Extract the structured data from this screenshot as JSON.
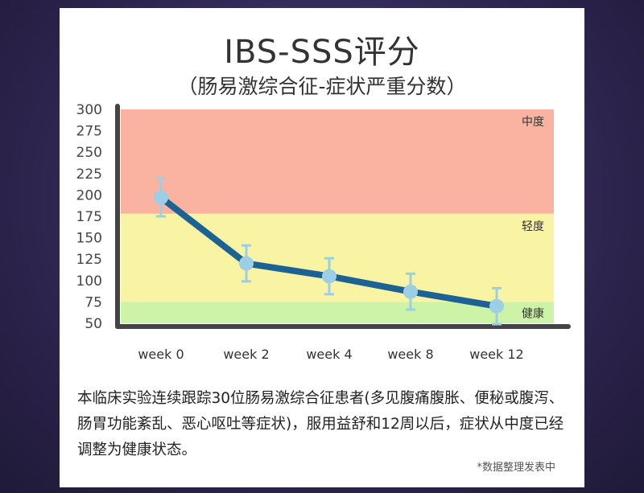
{
  "title": "IBS-SSS评分",
  "subtitle": "（肠易激综合征-症状严重分数）",
  "description": "本临床实验连续跟踪30位肠易激综合征患者(多见腹痛腹胀、便秘或腹泻、肠胃功能紊乱、恶心呕吐等症状)，服用益舒和12周以后，症状从中度已经调整为健康状态。",
  "footnote": "*数据整理发表中",
  "colors": {
    "moderate_band": "#f9b3a0",
    "mild_band": "#f9f3a4",
    "healthy_band": "#cdf3a6",
    "line": "#1c6294",
    "marker": "#9ccfe6",
    "axis": "#444444"
  },
  "chart_data": {
    "type": "line",
    "categories": [
      "week 0",
      "week 2",
      "week 4",
      "week 8",
      "week 12"
    ],
    "series": [
      {
        "values": [
          197,
          120,
          105,
          87,
          70
        ],
        "error": [
          22,
          21,
          21,
          21,
          21
        ]
      }
    ],
    "ylim": [
      50,
      300
    ],
    "yticks": [
      300,
      275,
      250,
      225,
      200,
      175,
      150,
      125,
      100,
      75,
      50
    ],
    "bands": [
      {
        "label": "中度",
        "from": 178,
        "to": 300
      },
      {
        "label": "轻度",
        "from": 75,
        "to": 178
      },
      {
        "label": "健康",
        "from": 50,
        "to": 75
      }
    ],
    "title": "",
    "xlabel": "",
    "ylabel": ""
  }
}
